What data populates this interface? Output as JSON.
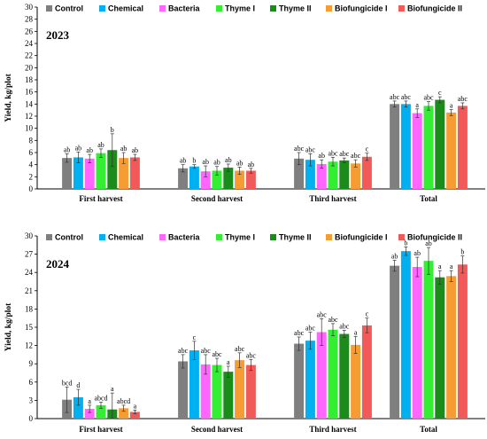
{
  "chart_data": [
    {
      "type": "bar",
      "title": "2023",
      "ylabel": "Yield, kg/plot",
      "ylim": [
        0,
        30
      ],
      "yticks": [
        0,
        2,
        4,
        6,
        8,
        10,
        12,
        14,
        16,
        18,
        20,
        22,
        24,
        26,
        28,
        30
      ],
      "categories": [
        "First harvest",
        "Second harvest",
        "Third harvest",
        "Total"
      ],
      "legend_position": "top",
      "series": [
        {
          "name": "Control",
          "color": "#7f7f7f",
          "values": [
            5.1,
            3.4,
            5.0,
            14.0
          ],
          "errors": [
            0.7,
            0.6,
            1.0,
            0.5
          ],
          "labels": [
            "ab",
            "ab",
            "abc",
            "abc"
          ]
        },
        {
          "name": "Chemical",
          "color": "#00b0f0",
          "values": [
            5.2,
            3.7,
            4.8,
            14.0
          ],
          "errors": [
            0.9,
            0.3,
            1.0,
            0.5
          ],
          "labels": [
            "ab",
            "b",
            "abc",
            "abc"
          ]
        },
        {
          "name": "Bacteria",
          "color": "#ff66ff",
          "values": [
            5.0,
            2.9,
            4.1,
            12.5
          ],
          "errors": [
            0.7,
            0.9,
            0.7,
            0.7
          ],
          "labels": [
            "ab",
            "ab",
            "ab",
            "a"
          ]
        },
        {
          "name": "Thyme I",
          "color": "#33ee33",
          "values": [
            5.9,
            3.0,
            4.5,
            13.7
          ],
          "errors": [
            0.7,
            0.7,
            0.7,
            0.7
          ],
          "labels": [
            "ab",
            "ab",
            "abc",
            "abc"
          ]
        },
        {
          "name": "Thyme II",
          "color": "#1a8c1a",
          "values": [
            6.4,
            3.5,
            4.7,
            14.7
          ],
          "errors": [
            2.7,
            0.6,
            0.4,
            0.5
          ],
          "labels": [
            "b",
            "ab",
            "abc",
            "c"
          ]
        },
        {
          "name": "Biofungicide I",
          "color": "#f79c33",
          "values": [
            5.1,
            3.0,
            4.2,
            12.6
          ],
          "errors": [
            0.9,
            0.6,
            0.6,
            0.5
          ],
          "labels": [
            "ab",
            "ab",
            "abc",
            "a"
          ]
        },
        {
          "name": "Biofungicide II",
          "color": "#f25a5a",
          "values": [
            5.2,
            3.0,
            5.3,
            13.7
          ],
          "errors": [
            0.5,
            0.4,
            0.6,
            0.5
          ],
          "labels": [
            "ab",
            "ab",
            "c",
            "abc"
          ]
        }
      ]
    },
    {
      "type": "bar",
      "title": "2024",
      "ylabel": "Yield, kg/plot",
      "ylim": [
        0,
        30
      ],
      "yticks": [
        0,
        3,
        6,
        9,
        12,
        15,
        18,
        21,
        24,
        27,
        30
      ],
      "categories": [
        "First harvest",
        "Second harvest",
        "Third harvest",
        "Total"
      ],
      "legend_position": "top",
      "series": [
        {
          "name": "Control",
          "color": "#7f7f7f",
          "values": [
            3.1,
            9.4,
            12.3,
            25.1
          ],
          "errors": [
            2.1,
            1.1,
            1.1,
            0.9
          ],
          "labels": [
            "bcd",
            "abc",
            "abc",
            "ab"
          ]
        },
        {
          "name": "Chemical",
          "color": "#00b0f0",
          "values": [
            3.5,
            11.2,
            12.8,
            27.5
          ],
          "errors": [
            1.3,
            1.5,
            1.4,
            0.7
          ],
          "labels": [
            "d",
            "c",
            "abc",
            "b"
          ]
        },
        {
          "name": "Bacteria",
          "color": "#ff66ff",
          "values": [
            1.6,
            8.9,
            14.2,
            24.9
          ],
          "errors": [
            0.6,
            1.6,
            2.2,
            1.6
          ],
          "labels": [
            "a",
            "abc",
            "abc",
            "ab"
          ]
        },
        {
          "name": "Thyme I",
          "color": "#33ee33",
          "values": [
            2.2,
            8.8,
            14.6,
            25.9
          ],
          "errors": [
            0.5,
            1.1,
            1.0,
            2.2
          ],
          "labels": [
            "abcd",
            "abc",
            "abc",
            "ab"
          ]
        },
        {
          "name": "Thyme II",
          "color": "#1a8c1a",
          "values": [
            1.5,
            7.7,
            13.9,
            23.2
          ],
          "errors": [
            2.7,
            0.9,
            0.6,
            1.1
          ],
          "labels": [
            "a",
            "a",
            "abc",
            "a"
          ]
        },
        {
          "name": "Biofungicide I",
          "color": "#f79c33",
          "values": [
            1.7,
            9.6,
            12.1,
            23.4
          ],
          "errors": [
            0.5,
            1.2,
            1.4,
            0.9
          ],
          "labels": [
            "abcd",
            "abc",
            "a",
            "a"
          ]
        },
        {
          "name": "Biofungicide II",
          "color": "#f25a5a",
          "values": [
            1.1,
            8.8,
            15.3,
            25.3
          ],
          "errors": [
            0.3,
            0.9,
            1.2,
            1.4
          ],
          "labels": [
            "a",
            "abc",
            "c",
            "b"
          ]
        }
      ]
    }
  ]
}
